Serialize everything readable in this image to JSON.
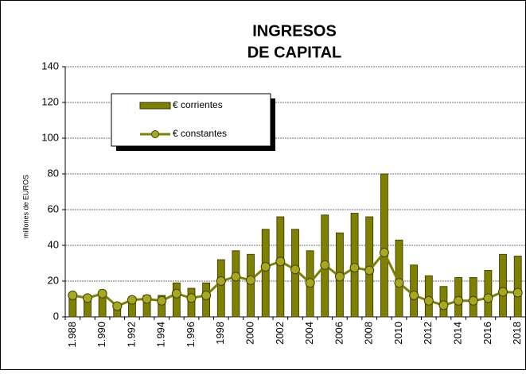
{
  "chart_data": {
    "type": "bar",
    "title": [
      "INGRESOS",
      "DE CAPITAL"
    ],
    "y_label": "millones de EUROS",
    "categories": [
      "1.988",
      null,
      "1.990",
      null,
      "1.992",
      null,
      "1.994",
      null,
      "1.996",
      null,
      "1998",
      null,
      "2000",
      null,
      "2002",
      null,
      "2004",
      null,
      "2006",
      null,
      "2008",
      null,
      "2010",
      null,
      "2012",
      null,
      "2014",
      null,
      "2016",
      null,
      "2018"
    ],
    "series": [
      {
        "name": "€ corrientes",
        "type": "bar",
        "color": "#808000",
        "values": [
          12,
          10,
          13,
          6,
          11,
          12,
          12,
          19,
          16,
          19,
          32,
          37,
          35,
          49,
          56,
          49,
          37,
          57,
          47,
          58,
          56,
          80,
          43,
          29,
          23,
          17,
          22,
          22,
          26,
          35,
          34
        ]
      },
      {
        "name": "€ constantes",
        "type": "line",
        "color": "#808000",
        "values": [
          12,
          10.5,
          13,
          6,
          9.5,
          10,
          9,
          13,
          10.5,
          12,
          20,
          22.5,
          20.5,
          28,
          31,
          26.5,
          19,
          29,
          22.5,
          27.5,
          26,
          36,
          19,
          12,
          9,
          6.5,
          9,
          9,
          10.5,
          14,
          13.5
        ]
      }
    ],
    "ylim": [
      0,
      140
    ],
    "yticks": [
      0,
      20,
      40,
      60,
      80,
      100,
      120,
      140
    ],
    "grid": true
  }
}
